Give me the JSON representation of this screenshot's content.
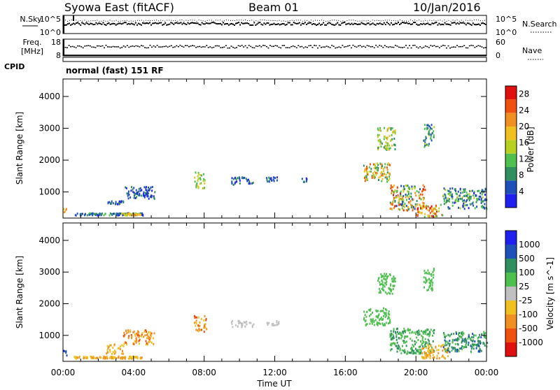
{
  "header": {
    "station": "Syowa East (fitACF)",
    "beam": "Beam 01",
    "date": "10/Jan/2016"
  },
  "strip_labels": {
    "nsky": "N.Sky",
    "nsearch": "N.Search",
    "freq_line1": "Freq.",
    "freq_line2": "[MHz]",
    "nave": "Nave",
    "cpid": "CPID",
    "noise_top": "10^5",
    "noise_bottom": "10^0",
    "freq_top": "18",
    "freq_bottom": "8",
    "nave_top": "60",
    "nave_bottom": "0"
  },
  "mode_text": "normal (fast) 151 RF",
  "colors": {
    "power": [
      "#1f1ff0",
      "#1f4fb8",
      "#2f8f5f",
      "#4fc04f",
      "#b8d020",
      "#f0c020",
      "#f09020",
      "#f05010",
      "#e01010"
    ],
    "velocity": [
      "#e01010",
      "#f05010",
      "#f09020",
      "#f0c020",
      "#c0c0c0",
      "#4fc04f",
      "#2f8f5f",
      "#1f4fb8",
      "#1f1ff0"
    ]
  },
  "chart_data": [
    {
      "type": "heatmap",
      "name": "power",
      "xlabel": "Time UT",
      "ylabel": "Slant Range [km]",
      "x_ticks": [
        "00:00",
        "04:00",
        "08:00",
        "12:00",
        "16:00",
        "20:00",
        "00:00"
      ],
      "x_tick_hours": [
        0,
        4,
        8,
        12,
        16,
        20,
        24
      ],
      "xlim": [
        0,
        24
      ],
      "y_ticks": [
        1000,
        2000,
        3000,
        4000
      ],
      "ylim": [
        180,
        4550
      ],
      "colorbar": {
        "label": "Power [dB]",
        "ticks": [
          4,
          8,
          12,
          16,
          20,
          24,
          28
        ],
        "range": [
          0,
          30
        ]
      },
      "regions": [
        {
          "t0": 0.0,
          "t1": 0.2,
          "r0": 250,
          "r1": 500,
          "v0": 16,
          "v1": 24
        },
        {
          "t0": 0.6,
          "t1": 4.5,
          "r0": 250,
          "r1": 320,
          "v0": 2,
          "v1": 12
        },
        {
          "t0": 3.3,
          "t1": 4.5,
          "r0": 250,
          "r1": 320,
          "v0": 14,
          "v1": 22
        },
        {
          "t0": 3.4,
          "t1": 5.2,
          "r0": 750,
          "r1": 1150,
          "v0": 2,
          "v1": 10
        },
        {
          "t0": 2.5,
          "t1": 3.4,
          "r0": 600,
          "r1": 700,
          "v0": 2,
          "v1": 10
        },
        {
          "t0": 7.4,
          "t1": 8.0,
          "r0": 1100,
          "r1": 1600,
          "v0": 10,
          "v1": 20
        },
        {
          "t0": 9.5,
          "t1": 10.8,
          "r0": 1200,
          "r1": 1450,
          "v0": 2,
          "v1": 10
        },
        {
          "t0": 11.5,
          "t1": 12.2,
          "r0": 1300,
          "r1": 1450,
          "v0": 2,
          "v1": 10
        },
        {
          "t0": 13.5,
          "t1": 13.8,
          "r0": 1300,
          "r1": 1450,
          "v0": 2,
          "v1": 8
        },
        {
          "t0": 17.0,
          "t1": 18.5,
          "r0": 1300,
          "r1": 1900,
          "v0": 8,
          "v1": 26
        },
        {
          "t0": 18.5,
          "t1": 20.5,
          "r0": 400,
          "r1": 1200,
          "v0": 4,
          "v1": 28
        },
        {
          "t0": 20.0,
          "t1": 21.5,
          "r0": 200,
          "r1": 600,
          "v0": 12,
          "v1": 30
        },
        {
          "t0": 21.5,
          "t1": 24.0,
          "r0": 450,
          "r1": 1100,
          "v0": 2,
          "v1": 16
        },
        {
          "t0": 17.8,
          "t1": 18.8,
          "r0": 2300,
          "r1": 3000,
          "v0": 8,
          "v1": 20
        },
        {
          "t0": 20.4,
          "t1": 21.0,
          "r0": 2400,
          "r1": 3100,
          "v0": 4,
          "v1": 14
        }
      ]
    },
    {
      "type": "heatmap",
      "name": "velocity",
      "xlabel": "Time UT",
      "ylabel": "Slant Range [km]",
      "x_ticks": [
        "00:00",
        "04:00",
        "08:00",
        "12:00",
        "16:00",
        "20:00",
        "00:00"
      ],
      "x_tick_hours": [
        0,
        4,
        8,
        12,
        16,
        20,
        24
      ],
      "xlim": [
        0,
        24
      ],
      "y_ticks": [
        1000,
        2000,
        3000,
        4000
      ],
      "ylim": [
        180,
        4550
      ],
      "colorbar": {
        "label": "Velocity [m s^-1]",
        "ticks": [
          "1000",
          "500",
          "100",
          "25",
          "-25",
          "-100",
          "-500",
          "-1000"
        ]
      },
      "regions": [
        {
          "t0": 0.0,
          "t1": 0.2,
          "r0": 300,
          "r1": 500,
          "v0": 6,
          "v1": 8
        },
        {
          "t0": 0.6,
          "t1": 4.5,
          "r0": 250,
          "r1": 320,
          "v0": 2,
          "v1": 3
        },
        {
          "t0": 3.4,
          "t1": 5.2,
          "r0": 700,
          "r1": 1150,
          "v0": 1,
          "v1": 3
        },
        {
          "t0": 2.4,
          "t1": 3.4,
          "r0": 400,
          "r1": 700,
          "v0": 2,
          "v1": 3
        },
        {
          "t0": 7.4,
          "t1": 8.1,
          "r0": 1100,
          "r1": 1600,
          "v0": 1,
          "v1": 3
        },
        {
          "t0": 9.5,
          "t1": 10.8,
          "r0": 1250,
          "r1": 1450,
          "v0": 4,
          "v1": 4
        },
        {
          "t0": 11.5,
          "t1": 12.2,
          "r0": 1300,
          "r1": 1450,
          "v0": 4,
          "v1": 4
        },
        {
          "t0": 17.0,
          "t1": 18.5,
          "r0": 1300,
          "r1": 1850,
          "v0": 5,
          "v1": 5
        },
        {
          "t0": 18.5,
          "t1": 21.0,
          "r0": 400,
          "r1": 1200,
          "v0": 5,
          "v1": 6
        },
        {
          "t0": 20.3,
          "t1": 21.8,
          "r0": 250,
          "r1": 700,
          "v0": 2,
          "v1": 3
        },
        {
          "t0": 21.5,
          "t1": 24.0,
          "r0": 450,
          "r1": 1100,
          "v0": 5,
          "v1": 7
        },
        {
          "t0": 17.8,
          "t1": 18.8,
          "r0": 2300,
          "r1": 3000,
          "v0": 5,
          "v1": 5
        },
        {
          "t0": 20.4,
          "t1": 21.0,
          "r0": 2400,
          "r1": 3100,
          "v0": 5,
          "v1": 5
        }
      ]
    }
  ]
}
